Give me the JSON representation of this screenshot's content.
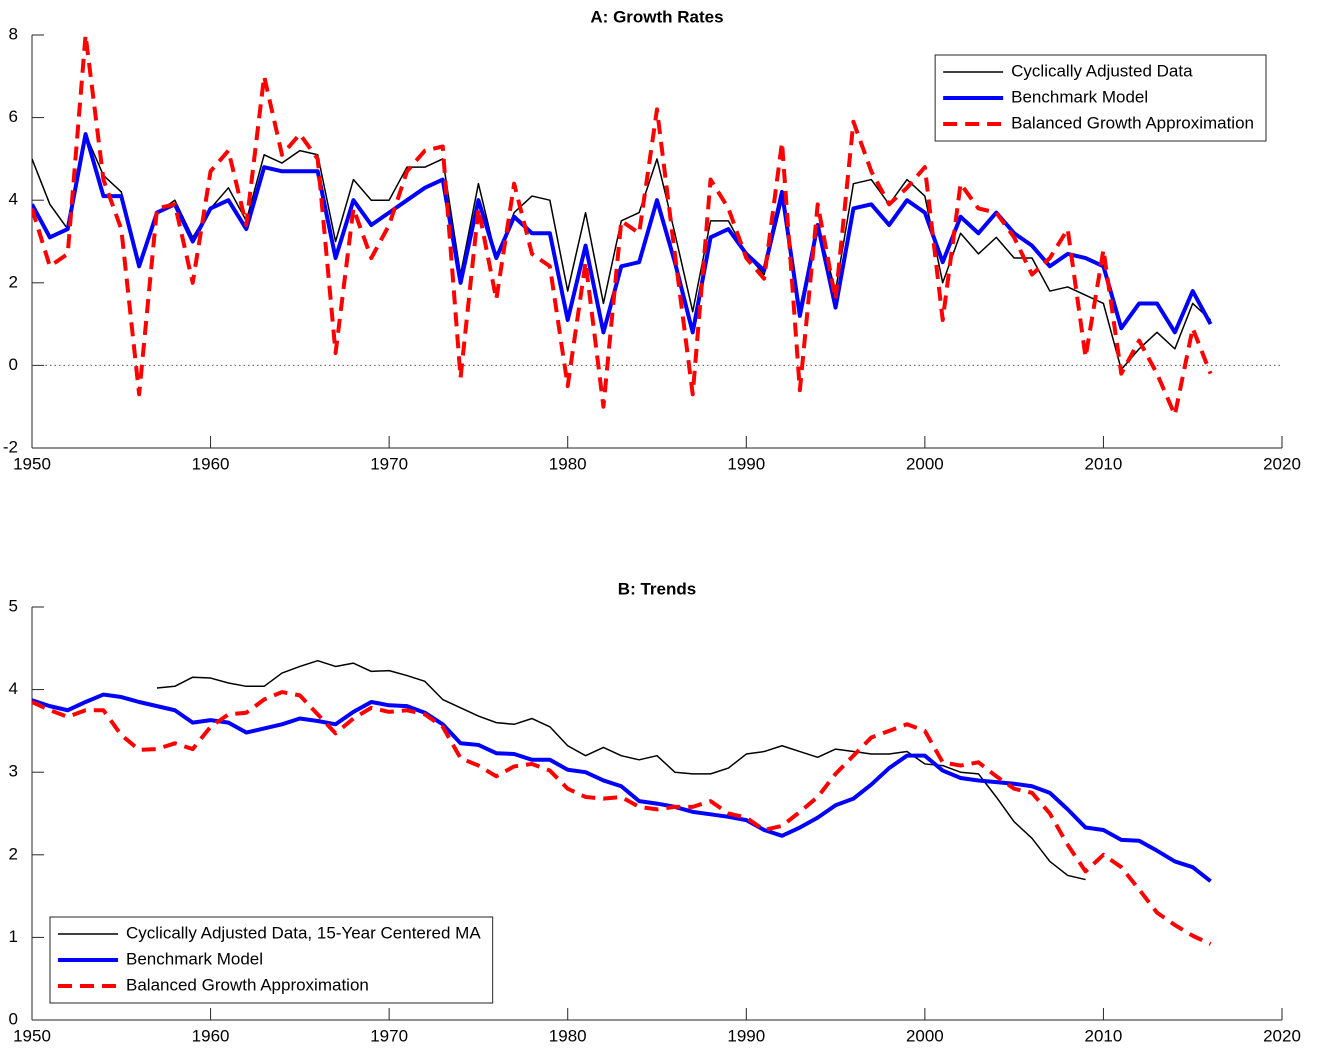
{
  "chart_data": [
    {
      "type": "line",
      "title": "A: Growth Rates",
      "x": [
        1950,
        1951,
        1952,
        1953,
        1954,
        1955,
        1956,
        1957,
        1958,
        1959,
        1960,
        1961,
        1962,
        1963,
        1964,
        1965,
        1966,
        1967,
        1968,
        1969,
        1970,
        1971,
        1972,
        1973,
        1974,
        1975,
        1976,
        1977,
        1978,
        1979,
        1980,
        1981,
        1982,
        1983,
        1984,
        1985,
        1986,
        1987,
        1988,
        1989,
        1990,
        1991,
        1992,
        1993,
        1994,
        1995,
        1996,
        1997,
        1998,
        1999,
        2000,
        2001,
        2002,
        2003,
        2004,
        2005,
        2006,
        2007,
        2008,
        2009,
        2010,
        2011,
        2012,
        2013,
        2014,
        2015,
        2016
      ],
      "xlim": [
        1950,
        2020
      ],
      "xticks": [
        1950,
        1960,
        1970,
        1980,
        1990,
        2000,
        2010,
        2020
      ],
      "ylim": [
        -2,
        8
      ],
      "yticks": [
        -2,
        0,
        2,
        4,
        6,
        8
      ],
      "zero_line": true,
      "legend": "upper right",
      "series": [
        {
          "name": "Cyclically Adjusted Data",
          "color": "#000000",
          "linestyle": "solid",
          "linewidth": 1.5,
          "values": [
            5.0,
            3.9,
            3.3,
            5.6,
            4.6,
            4.2,
            2.5,
            3.7,
            4.0,
            3.1,
            3.8,
            4.3,
            3.5,
            5.1,
            4.9,
            5.2,
            5.1,
            3.0,
            4.5,
            4.0,
            4.0,
            4.8,
            4.8,
            5.0,
            2.2,
            4.4,
            2.6,
            3.7,
            4.1,
            4.0,
            1.8,
            3.7,
            1.5,
            3.5,
            3.7,
            5.0,
            3.2,
            1.3,
            3.5,
            3.5,
            2.7,
            2.2,
            4.0,
            1.4,
            3.4,
            1.8,
            4.4,
            4.5,
            3.9,
            4.5,
            4.1,
            2.0,
            3.2,
            2.7,
            3.1,
            2.6,
            2.6,
            1.8,
            1.9,
            1.7,
            1.5,
            -0.1,
            0.4,
            0.8,
            0.4,
            1.5,
            1.1
          ]
        },
        {
          "name": "Benchmark Model",
          "color": "#0000ff",
          "linestyle": "solid",
          "linewidth": 4,
          "values": [
            3.9,
            3.1,
            3.3,
            5.6,
            4.1,
            4.1,
            2.4,
            3.7,
            3.9,
            3.0,
            3.8,
            4.0,
            3.3,
            4.8,
            4.7,
            4.7,
            4.7,
            2.6,
            4.0,
            3.4,
            3.7,
            4.0,
            4.3,
            4.5,
            2.0,
            4.0,
            2.6,
            3.6,
            3.2,
            3.2,
            1.1,
            2.9,
            0.8,
            2.4,
            2.5,
            4.0,
            2.5,
            0.8,
            3.1,
            3.3,
            2.7,
            2.3,
            4.2,
            1.2,
            3.4,
            1.4,
            3.8,
            3.9,
            3.4,
            4.0,
            3.7,
            2.5,
            3.6,
            3.2,
            3.7,
            3.2,
            2.9,
            2.4,
            2.7,
            2.6,
            2.4,
            0.9,
            1.5,
            1.5,
            0.8,
            1.8,
            1.0
          ]
        },
        {
          "name": "Balanced Growth Approximation",
          "color": "#ff0000",
          "linestyle": "dashed",
          "linewidth": 4,
          "values": [
            3.8,
            2.4,
            2.7,
            8.0,
            4.5,
            3.3,
            -0.7,
            3.8,
            3.9,
            2.0,
            4.7,
            5.2,
            3.4,
            7.0,
            5.1,
            5.6,
            5.0,
            0.3,
            3.8,
            2.6,
            3.4,
            4.7,
            5.2,
            5.3,
            -0.3,
            3.8,
            1.6,
            4.4,
            2.7,
            2.4,
            -0.5,
            2.5,
            -1.0,
            3.5,
            3.2,
            6.2,
            2.7,
            -0.7,
            4.5,
            3.8,
            2.6,
            2.1,
            5.4,
            -0.6,
            3.9,
            1.6,
            5.9,
            4.7,
            3.9,
            4.3,
            4.8,
            1.1,
            4.4,
            3.8,
            3.7,
            3.1,
            2.2,
            2.6,
            3.3,
            0.2,
            2.8,
            -0.2,
            0.6,
            -0.2,
            -1.2,
            0.9,
            -0.2
          ]
        }
      ]
    },
    {
      "type": "line",
      "title": "B: Trends",
      "x": [
        1950,
        1951,
        1952,
        1953,
        1954,
        1955,
        1956,
        1957,
        1958,
        1959,
        1960,
        1961,
        1962,
        1963,
        1964,
        1965,
        1966,
        1967,
        1968,
        1969,
        1970,
        1971,
        1972,
        1973,
        1974,
        1975,
        1976,
        1977,
        1978,
        1979,
        1980,
        1981,
        1982,
        1983,
        1984,
        1985,
        1986,
        1987,
        1988,
        1989,
        1990,
        1991,
        1992,
        1993,
        1994,
        1995,
        1996,
        1997,
        1998,
        1999,
        2000,
        2001,
        2002,
        2003,
        2004,
        2005,
        2006,
        2007,
        2008,
        2009,
        2010,
        2011,
        2012,
        2013,
        2014,
        2015,
        2016
      ],
      "xlim": [
        1950,
        2020
      ],
      "xticks": [
        1950,
        1960,
        1970,
        1980,
        1990,
        2000,
        2010,
        2020
      ],
      "ylim": [
        0,
        5
      ],
      "yticks": [
        0,
        1,
        2,
        3,
        4,
        5
      ],
      "zero_line": false,
      "legend": "lower left",
      "series": [
        {
          "name": "Cyclically Adjusted Data, 15-Year Centered MA",
          "color": "#000000",
          "linestyle": "solid",
          "linewidth": 1.5,
          "values": [
            null,
            null,
            null,
            null,
            null,
            null,
            null,
            4.02,
            4.04,
            4.15,
            4.14,
            4.08,
            4.04,
            4.04,
            4.2,
            4.28,
            4.35,
            4.28,
            4.32,
            4.22,
            4.23,
            4.17,
            4.1,
            3.88,
            3.78,
            3.68,
            3.6,
            3.58,
            3.65,
            3.55,
            3.32,
            3.2,
            3.3,
            3.2,
            3.15,
            3.2,
            3.0,
            2.98,
            2.98,
            3.05,
            3.22,
            3.25,
            3.32,
            3.25,
            3.18,
            3.28,
            3.25,
            3.22,
            3.22,
            3.25,
            3.1,
            3.08,
            3.0,
            2.98,
            2.7,
            2.4,
            2.2,
            1.92,
            1.75,
            1.7,
            null,
            null,
            null,
            null,
            null,
            null,
            null
          ]
        },
        {
          "name": "Benchmark Model",
          "color": "#0000ff",
          "linestyle": "solid",
          "linewidth": 4,
          "values": [
            3.87,
            3.8,
            3.75,
            3.85,
            3.94,
            3.91,
            3.85,
            3.8,
            3.75,
            3.6,
            3.63,
            3.6,
            3.48,
            3.53,
            3.58,
            3.65,
            3.62,
            3.58,
            3.73,
            3.85,
            3.81,
            3.8,
            3.72,
            3.58,
            3.35,
            3.33,
            3.23,
            3.22,
            3.15,
            3.15,
            3.03,
            3.0,
            2.9,
            2.83,
            2.65,
            2.62,
            2.58,
            2.52,
            2.49,
            2.46,
            2.42,
            2.3,
            2.23,
            2.33,
            2.45,
            2.6,
            2.68,
            2.85,
            3.05,
            3.2,
            3.2,
            3.02,
            2.93,
            2.9,
            2.88,
            2.86,
            2.83,
            2.75,
            2.55,
            2.33,
            2.3,
            2.18,
            2.17,
            2.05,
            1.92,
            1.85,
            1.68
          ]
        },
        {
          "name": "Balanced Growth Approximation",
          "color": "#ff0000",
          "linestyle": "dashed",
          "linewidth": 4,
          "values": [
            3.85,
            3.75,
            3.67,
            3.75,
            3.75,
            3.45,
            3.27,
            3.28,
            3.35,
            3.28,
            3.55,
            3.7,
            3.72,
            3.88,
            3.97,
            3.93,
            3.7,
            3.47,
            3.65,
            3.78,
            3.73,
            3.75,
            3.7,
            3.55,
            3.17,
            3.08,
            2.95,
            3.07,
            3.1,
            3.02,
            2.8,
            2.7,
            2.68,
            2.7,
            2.58,
            2.55,
            2.58,
            2.58,
            2.65,
            2.5,
            2.45,
            2.3,
            2.35,
            2.52,
            2.7,
            2.98,
            3.2,
            3.42,
            3.5,
            3.58,
            3.5,
            3.12,
            3.08,
            3.12,
            2.95,
            2.8,
            2.75,
            2.5,
            2.12,
            1.8,
            2.0,
            1.85,
            1.58,
            1.3,
            1.15,
            1.02,
            0.92
          ]
        }
      ]
    }
  ]
}
